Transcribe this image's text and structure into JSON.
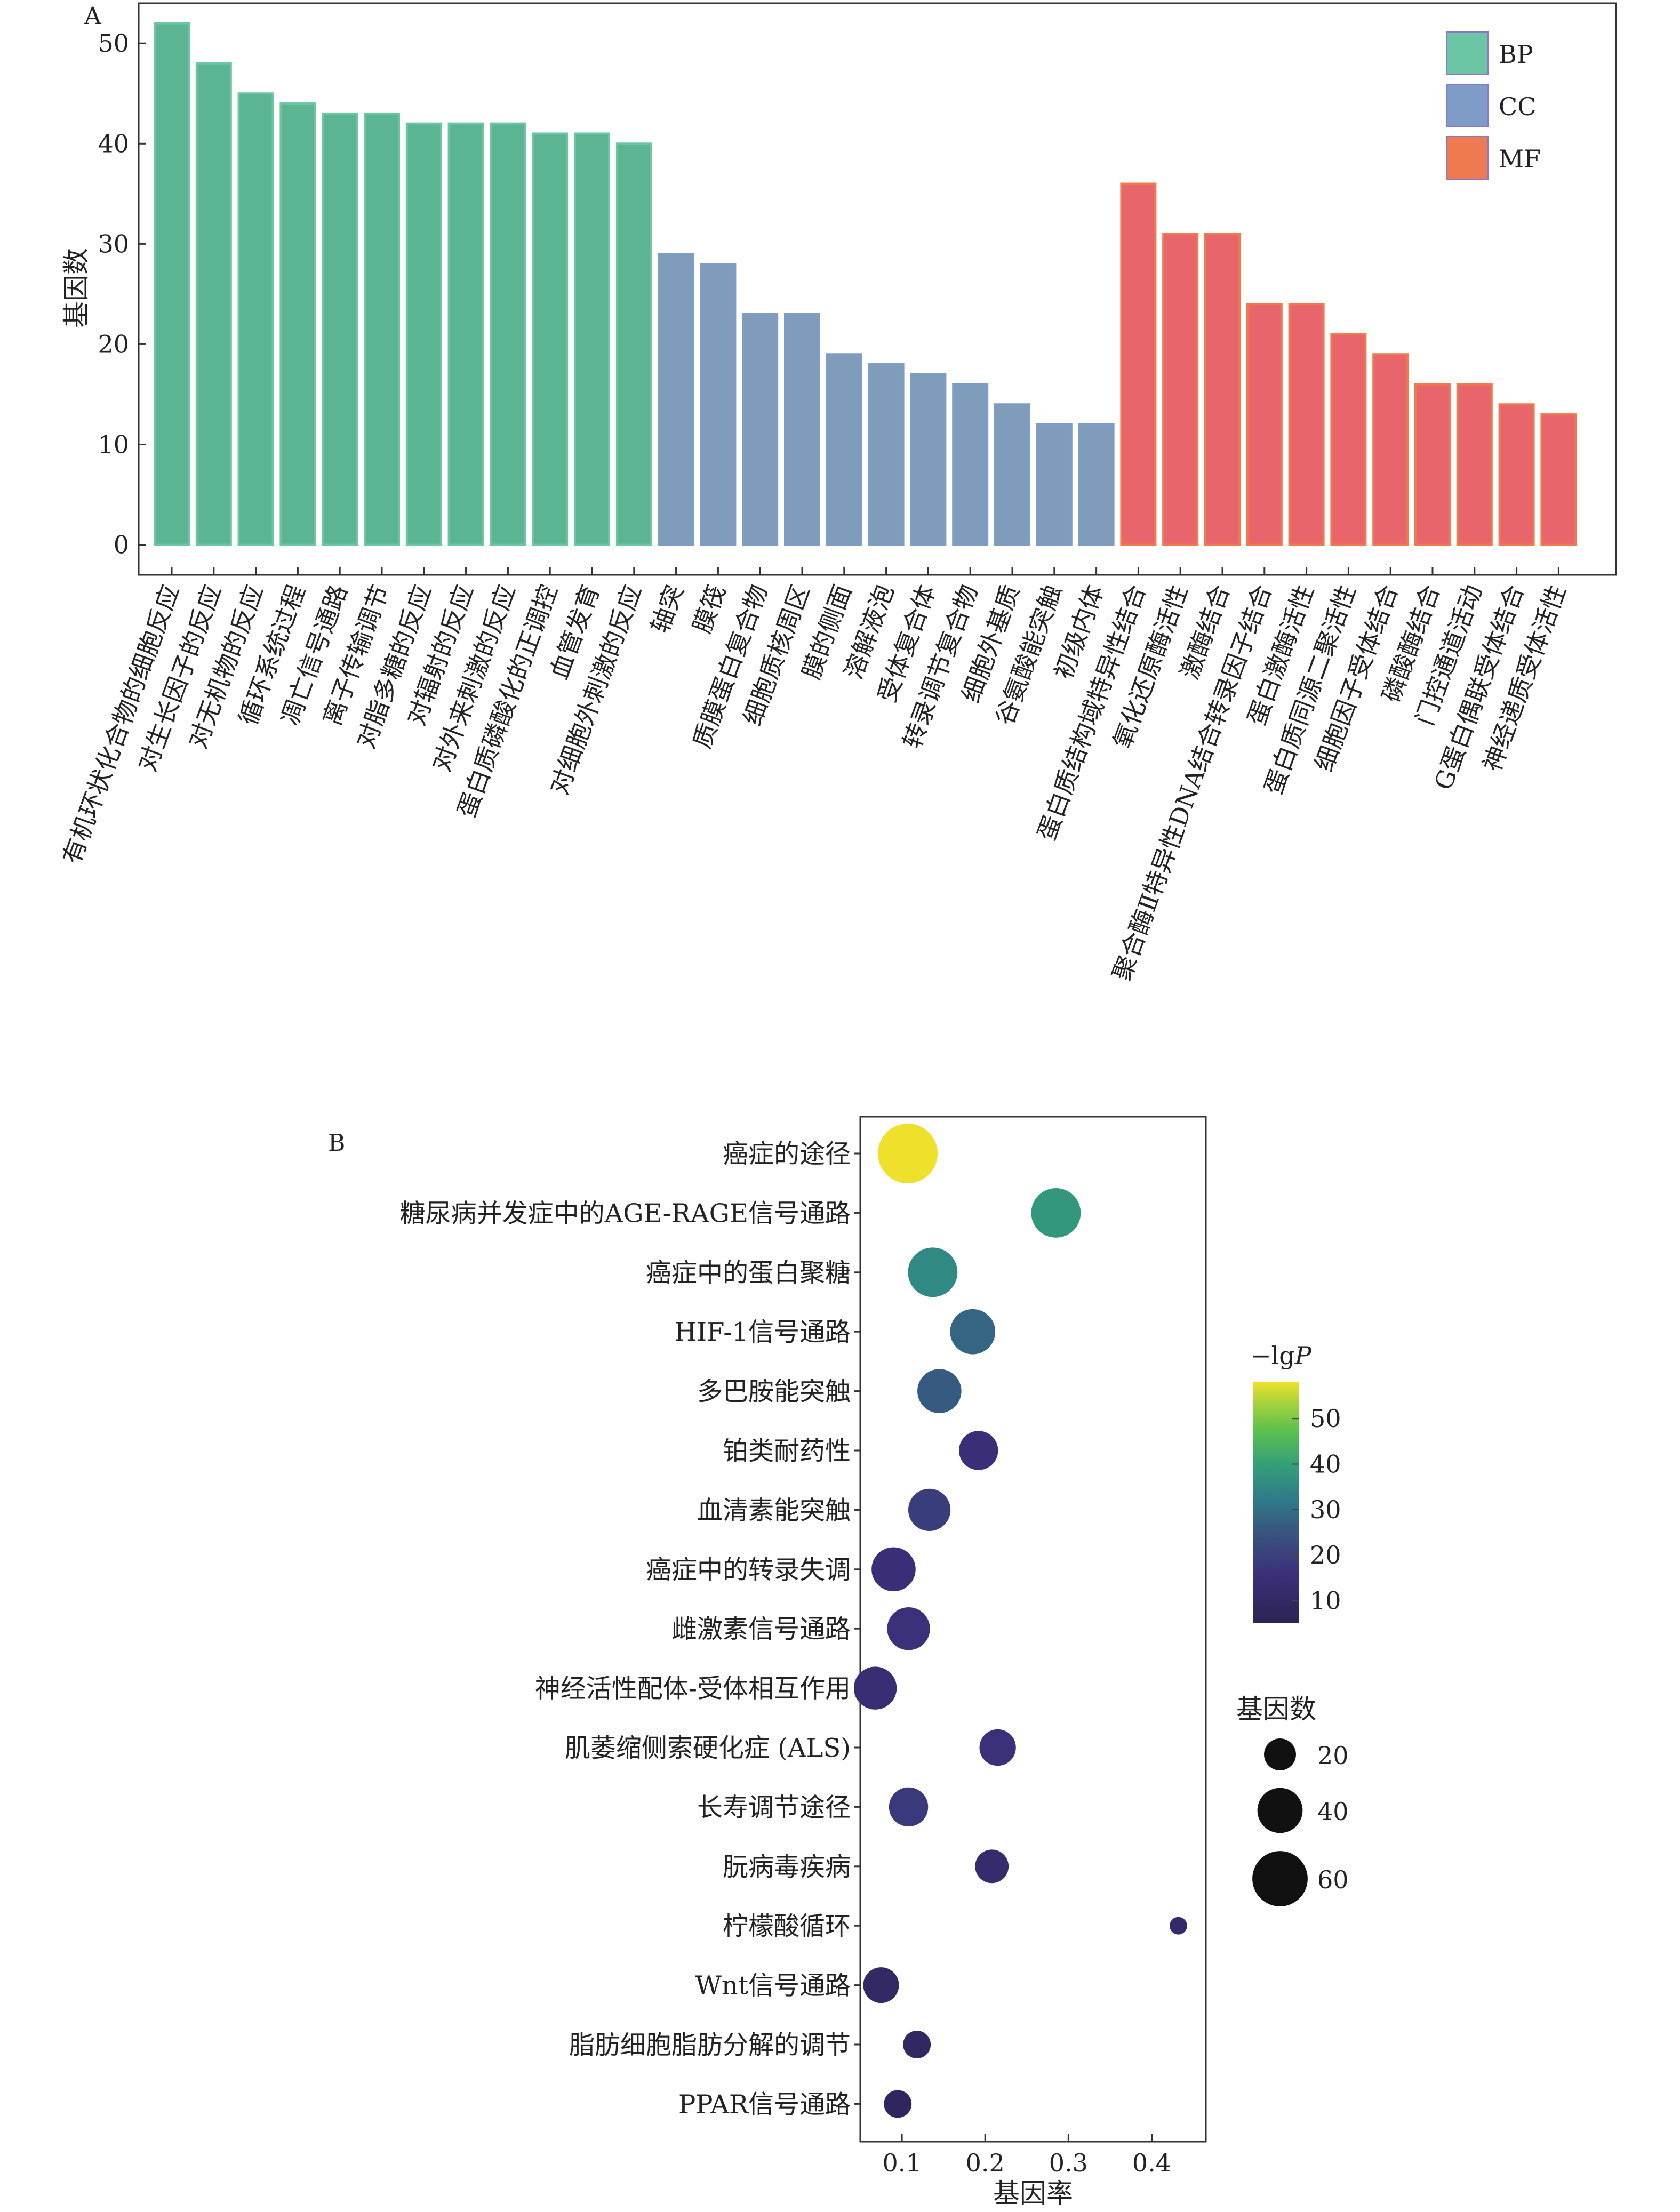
{
  "panel_a_label": "A",
  "panel_b_label": "B",
  "chart_data": [
    {
      "type": "bar",
      "ylabel": "基因数",
      "xlabel": "",
      "ylim": [
        -3,
        54
      ],
      "yticks": [
        0,
        10,
        20,
        30,
        40,
        50
      ],
      "legend": {
        "position": "top-right",
        "entries": [
          "BP",
          "CC",
          "MF"
        ]
      },
      "colors": {
        "BP": "#5bb593",
        "CC": "#7f9cbb",
        "MF": "#e8656b"
      },
      "legend_colors": {
        "BP": "#6cc5a5",
        "CC": "#7f9cc6",
        "MF": "#ef7a4f"
      },
      "categories": [
        "有机环状化合物的细胞反应",
        "对生长因子的反应",
        "对无机物的反应",
        "循环系统过程",
        "凋亡信号通路",
        "离子传输调节",
        "对脂多糖的反应",
        "对辐射的反应",
        "对外来刺激的反应",
        "蛋白质磷酸化的正调控",
        "血管发育",
        "对细胞外刺激的反应",
        "轴突",
        "膜筏",
        "质膜蛋白复合物",
        "细胞质核周区",
        "膜的侧面",
        "溶解液泡",
        "受体复合体",
        "转录调节复合物",
        "细胞外基质",
        "谷氨酸能突触",
        "初级内体",
        "蛋白质结构域特异性结合",
        "氧化还原酶活性",
        "激酶结合",
        "聚合酶Ⅱ特异性DNA结合转录因子结合",
        "蛋白激酶活性",
        "蛋白质同源二聚活性",
        "细胞因子受体结合",
        "磷酸酶结合",
        "门控通道活动",
        "G蛋白偶联受体结合",
        "神经递质受体活性"
      ],
      "groups": [
        "BP",
        "BP",
        "BP",
        "BP",
        "BP",
        "BP",
        "BP",
        "BP",
        "BP",
        "BP",
        "BP",
        "BP",
        "CC",
        "CC",
        "CC",
        "CC",
        "CC",
        "CC",
        "CC",
        "CC",
        "CC",
        "CC",
        "CC",
        "MF",
        "MF",
        "MF",
        "MF",
        "MF",
        "MF",
        "MF",
        "MF",
        "MF",
        "MF",
        "MF"
      ],
      "values": [
        52,
        48,
        45,
        44,
        43,
        43,
        42,
        42,
        42,
        41,
        41,
        40,
        29,
        28,
        23,
        23,
        19,
        18,
        17,
        16,
        14,
        12,
        12,
        36,
        31,
        31,
        24,
        24,
        21,
        19,
        16,
        16,
        14,
        13
      ]
    },
    {
      "type": "scatter",
      "xlabel": "基因率",
      "ylabel": "",
      "xlim": [
        0.05,
        0.465
      ],
      "xticks": [
        0.1,
        0.2,
        0.3,
        0.4
      ],
      "categories": [
        "癌症的途径",
        "糖尿病并发症中的AGE-RAGE信号通路",
        "癌症中的蛋白聚糖",
        "HIF-1信号通路",
        "多巴胺能突触",
        "铂类耐药性",
        "血清素能突触",
        "癌症中的转录失调",
        "雌激素信号通路",
        "神经活性配体-受体相互作用",
        "肌萎缩侧索硬化症 (ALS)",
        "长寿调节途径",
        "朊病毒疾病",
        "柠檬酸循环",
        "Wnt信号通路",
        "脂肪细胞脂肪分解的调节",
        "PPAR信号通路"
      ],
      "x": [
        0.107,
        0.285,
        0.137,
        0.185,
        0.145,
        0.192,
        0.133,
        0.09,
        0.108,
        0.068,
        0.215,
        0.108,
        0.208,
        0.432,
        0.075,
        0.118,
        0.095
      ],
      "gene_count": [
        70,
        48,
        48,
        40,
        38,
        30,
        35,
        38,
        36,
        36,
        26,
        30,
        22,
        6,
        25,
        15,
        15
      ],
      "neg_log_p": [
        58,
        38,
        35,
        28,
        26,
        15,
        19,
        15,
        16,
        14,
        16,
        18,
        12,
        11,
        10,
        9,
        8
      ],
      "colorbar": {
        "title": "−lg",
        "title_italic": "P",
        "ticks": [
          10,
          20,
          30,
          40,
          50
        ],
        "range": [
          5,
          58
        ]
      },
      "size_legend": {
        "title": "基因数",
        "values": [
          20,
          40,
          60
        ]
      }
    }
  ]
}
